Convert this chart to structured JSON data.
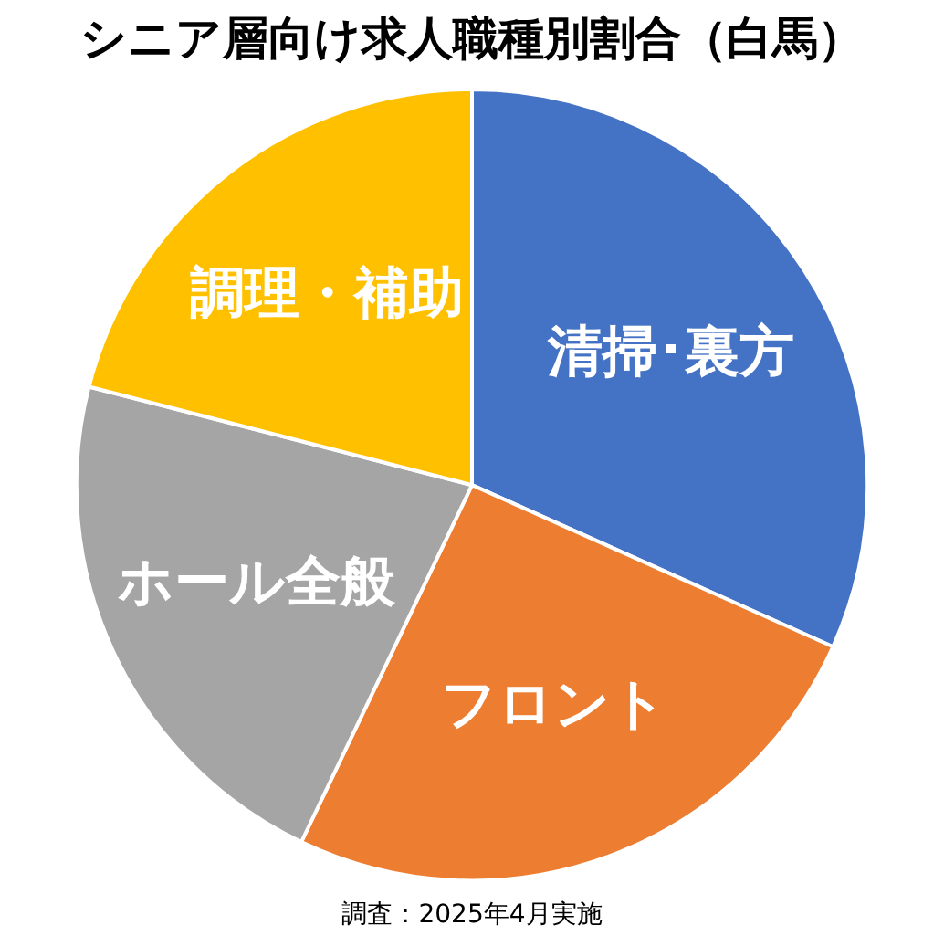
{
  "chart_data": {
    "type": "pie",
    "title": "シニア層向け求人職種別割合（白馬）",
    "categories": [
      "清掃･裏方",
      "フロント",
      "ホール全般",
      "調理・補助"
    ],
    "values": [
      31.7,
      25.4,
      21.9,
      21.0
    ],
    "colors": [
      "#4472c4",
      "#ed7d31",
      "#a5a5a5",
      "#ffc000"
    ],
    "legend": false,
    "annotations": [
      "調査：2025年4月実施"
    ]
  }
}
